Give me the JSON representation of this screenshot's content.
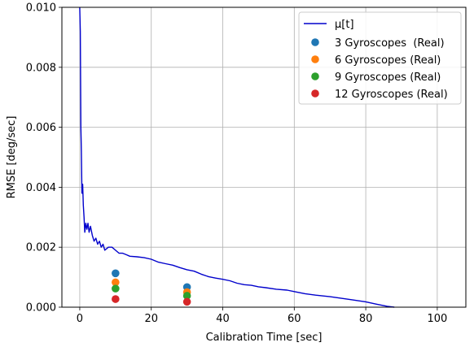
{
  "chart_data": {
    "type": "scatter",
    "xlabel": "Calibration Time [sec]",
    "ylabel": "RMSE [deg/sec]",
    "xlim": [
      -5,
      108
    ],
    "ylim": [
      0,
      0.01
    ],
    "xticks": [
      0,
      20,
      40,
      60,
      80,
      100
    ],
    "yticks": [
      "0.000",
      "0.002",
      "0.004",
      "0.006",
      "0.008",
      "0.010"
    ],
    "grid": true,
    "legend_position": "upper right",
    "line_series": {
      "name": "μ[t]",
      "color": "#0000cc",
      "points": [
        [
          0.0,
          0.01
        ],
        [
          0.15,
          0.0092
        ],
        [
          0.3,
          0.006
        ],
        [
          0.45,
          0.0052
        ],
        [
          0.6,
          0.0038
        ],
        [
          0.8,
          0.0041
        ],
        [
          1.0,
          0.0034
        ],
        [
          1.2,
          0.003
        ],
        [
          1.4,
          0.0025
        ],
        [
          1.7,
          0.0028
        ],
        [
          2.0,
          0.0026
        ],
        [
          2.3,
          0.0028
        ],
        [
          2.6,
          0.0025
        ],
        [
          3.0,
          0.0027
        ],
        [
          3.5,
          0.0024
        ],
        [
          4.0,
          0.0022
        ],
        [
          4.5,
          0.0023
        ],
        [
          5.0,
          0.0021
        ],
        [
          5.5,
          0.0022
        ],
        [
          6.0,
          0.002
        ],
        [
          6.5,
          0.0021
        ],
        [
          7.0,
          0.0019
        ],
        [
          8.0,
          0.002
        ],
        [
          9.0,
          0.002
        ],
        [
          10.0,
          0.0019
        ],
        [
          11.0,
          0.0018
        ],
        [
          12.0,
          0.0018
        ],
        [
          13.0,
          0.00175
        ],
        [
          14.0,
          0.0017
        ],
        [
          16.0,
          0.00168
        ],
        [
          18.0,
          0.00165
        ],
        [
          20.0,
          0.0016
        ],
        [
          22.0,
          0.0015
        ],
        [
          24.0,
          0.00145
        ],
        [
          26.0,
          0.0014
        ],
        [
          28.0,
          0.00132
        ],
        [
          30.0,
          0.00125
        ],
        [
          32.0,
          0.0012
        ],
        [
          34.0,
          0.0011
        ],
        [
          36.0,
          0.00102
        ],
        [
          38.0,
          0.00097
        ],
        [
          40.0,
          0.00093
        ],
        [
          42.0,
          0.00088
        ],
        [
          44.0,
          0.0008
        ],
        [
          46.0,
          0.00075
        ],
        [
          48.0,
          0.00073
        ],
        [
          50.0,
          0.00068
        ],
        [
          52.0,
          0.00065
        ],
        [
          55.0,
          0.0006
        ],
        [
          58.0,
          0.00057
        ],
        [
          60.0,
          0.00052
        ],
        [
          63.0,
          0.00045
        ],
        [
          66.0,
          0.0004
        ],
        [
          70.0,
          0.00035
        ],
        [
          73.0,
          0.0003
        ],
        [
          76.0,
          0.00025
        ],
        [
          80.0,
          0.00018
        ],
        [
          83.0,
          0.0001
        ],
        [
          86.0,
          3e-05
        ],
        [
          88.0,
          0.0
        ]
      ]
    },
    "series": [
      {
        "name": "3 Gyroscopes  (Real)",
        "color": "#1f77b4",
        "x": [
          10,
          30
        ],
        "y": [
          0.00113,
          0.00067
        ]
      },
      {
        "name": "6 Gyroscopes (Real)",
        "color": "#ff7f0e",
        "x": [
          10,
          30
        ],
        "y": [
          0.00083,
          0.0005
        ]
      },
      {
        "name": "9 Gyroscopes (Real)",
        "color": "#2ca02c",
        "x": [
          10,
          30
        ],
        "y": [
          0.00062,
          0.00038
        ]
      },
      {
        "name": "12 Gyroscopes (Real)",
        "color": "#d62728",
        "x": [
          10,
          30
        ],
        "y": [
          0.00027,
          0.00018
        ]
      }
    ]
  }
}
